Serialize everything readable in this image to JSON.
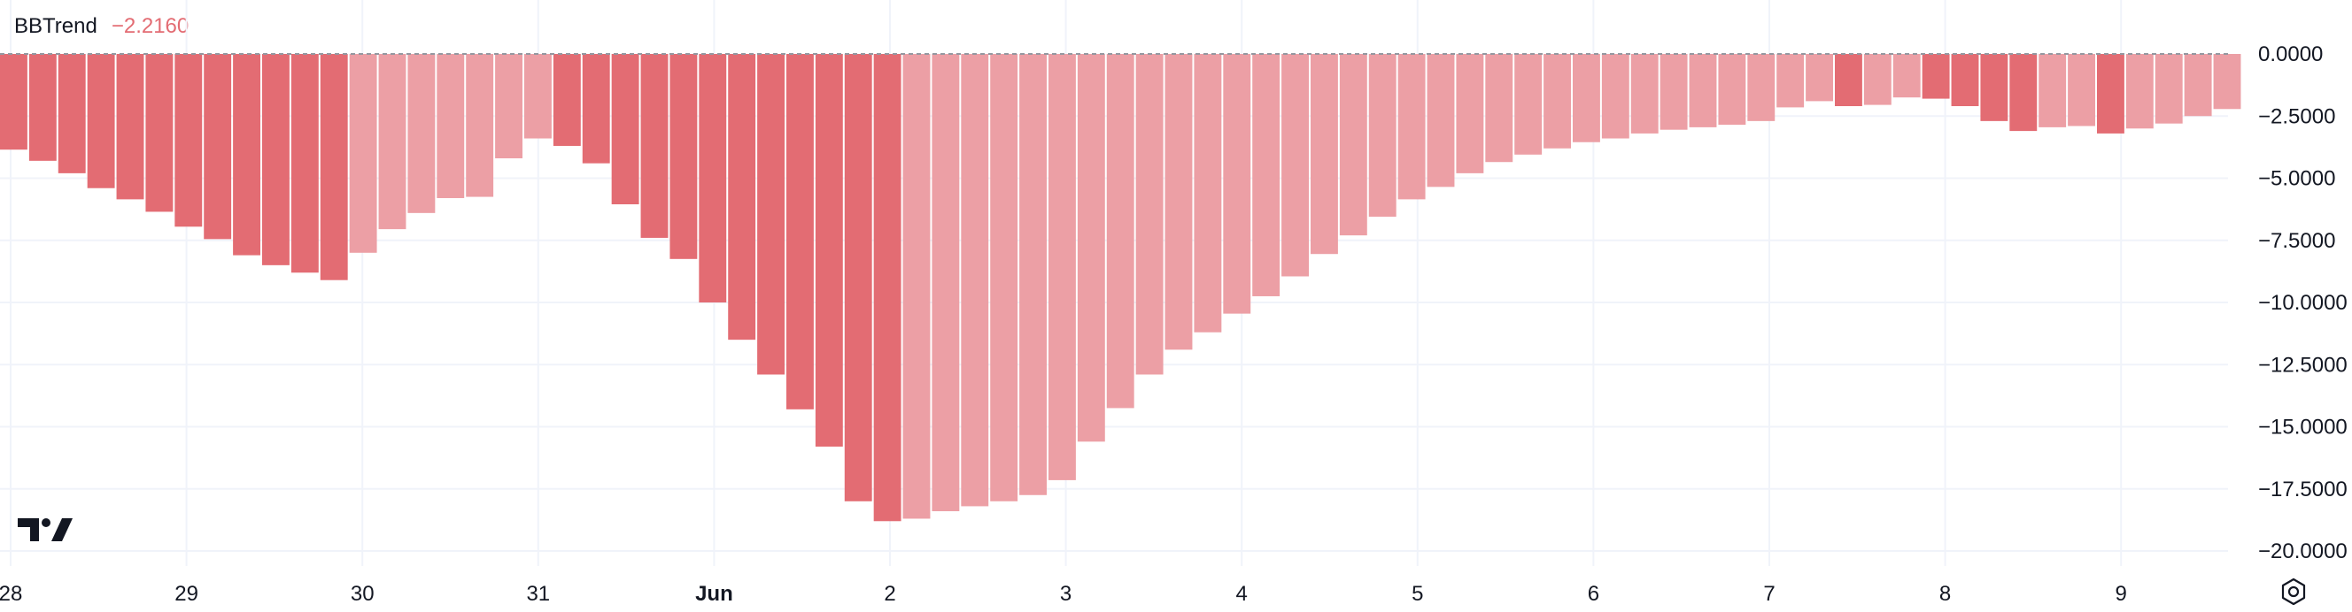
{
  "legend": {
    "name": "BBTrend",
    "value": "−2.2160"
  },
  "colors": {
    "strong": "#e36c73",
    "weak": "#ec9fa5",
    "grid": "#f0f3fa",
    "zero_line": "#9598a1",
    "text": "#131722"
  },
  "icons": {
    "logo": "tradingview-logo-icon",
    "settings": "settings-gear-icon"
  },
  "chart_data": {
    "type": "bar",
    "title": "BBTrend",
    "y_ticks": [
      "0.0000",
      "−2.5000",
      "−5.0000",
      "−7.5000",
      "−10.0000",
      "−12.5000",
      "−15.0000",
      "−17.5000",
      "−20.0000"
    ],
    "ylim": [
      -20.0,
      0.0
    ],
    "grid": true,
    "x_ticks": [
      "28",
      "29",
      "30",
      "31",
      "Jun",
      "2",
      "3",
      "4",
      "5",
      "6",
      "7",
      "8",
      "9"
    ],
    "x_tick_bold": [
      "Jun"
    ],
    "series": [
      {
        "values": [
          -3.85,
          -4.3,
          -4.8,
          -5.4,
          -5.85,
          -6.35,
          -6.95,
          -7.45,
          -8.1,
          -8.5,
          -8.8,
          -9.1,
          -8.0,
          -7.05,
          -6.4,
          -5.8,
          -5.75,
          -4.2,
          -3.4,
          -3.7,
          -4.4,
          -6.05,
          -7.4,
          -8.25,
          -10.0,
          -11.5,
          -12.9,
          -14.3,
          -15.8,
          -18.0,
          -18.8,
          -18.7,
          -18.4,
          -18.2,
          -18.0,
          -17.75,
          -17.15,
          -15.6,
          -14.25,
          -12.9,
          -11.9,
          -11.2,
          -10.45,
          -9.75,
          -8.95,
          -8.05,
          -7.3,
          -6.55,
          -5.85,
          -5.35,
          -4.8,
          -4.35,
          -4.05,
          -3.8,
          -3.55,
          -3.4,
          -3.2,
          -3.05,
          -2.95,
          -2.85,
          -2.7,
          -2.15,
          -1.9,
          -2.1,
          -2.05,
          -1.75,
          -1.8,
          -2.1,
          -2.7,
          -3.1,
          -2.95,
          -2.9,
          -3.2,
          -3.0,
          -2.8,
          -2.5,
          -2.216
        ],
        "strength": [
          "strong",
          "strong",
          "strong",
          "strong",
          "strong",
          "strong",
          "strong",
          "strong",
          "strong",
          "strong",
          "strong",
          "strong",
          "weak",
          "weak",
          "weak",
          "weak",
          "weak",
          "weak",
          "weak",
          "strong",
          "strong",
          "strong",
          "strong",
          "strong",
          "strong",
          "strong",
          "strong",
          "strong",
          "strong",
          "strong",
          "strong",
          "weak",
          "weak",
          "weak",
          "weak",
          "weak",
          "weak",
          "weak",
          "weak",
          "weak",
          "weak",
          "weak",
          "weak",
          "weak",
          "weak",
          "weak",
          "weak",
          "weak",
          "weak",
          "weak",
          "weak",
          "weak",
          "weak",
          "weak",
          "weak",
          "weak",
          "weak",
          "weak",
          "weak",
          "weak",
          "weak",
          "weak",
          "weak",
          "strong",
          "weak",
          "weak",
          "strong",
          "strong",
          "strong",
          "strong",
          "weak",
          "weak",
          "strong",
          "weak",
          "weak",
          "weak",
          "weak"
        ]
      }
    ]
  }
}
